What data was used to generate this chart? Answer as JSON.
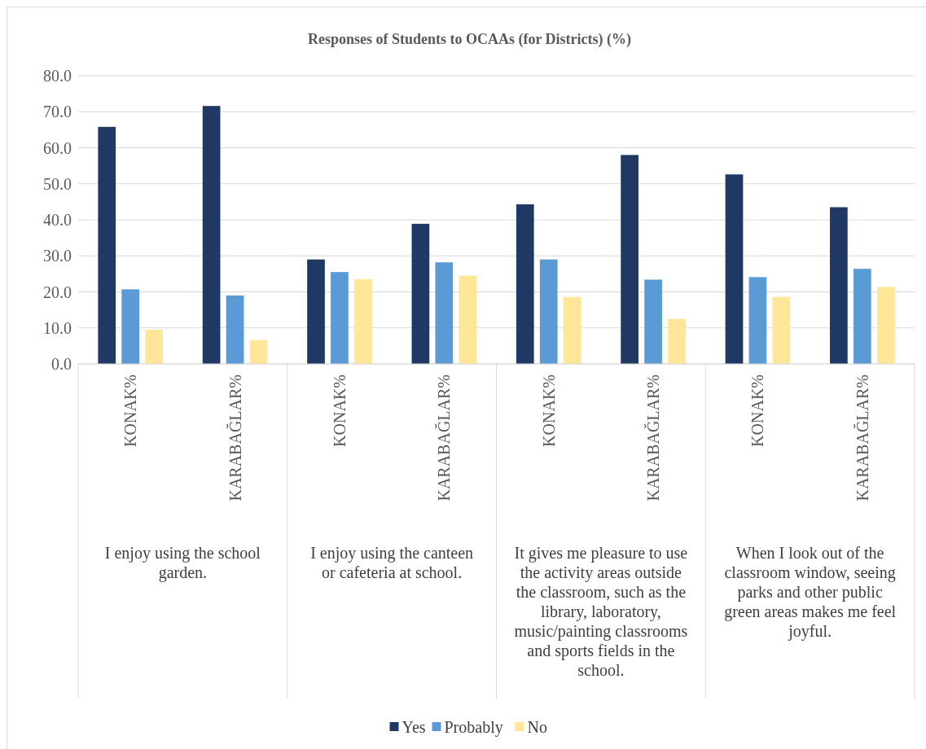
{
  "chart_data": {
    "type": "bar",
    "title": "Responses of Students to OCAAs (for Districts) (%)",
    "categories": [
      "KONAK%",
      "KARABAĞLAR%",
      "KONAK%",
      "KARABAĞLAR%",
      "KONAK%",
      "KARABAĞLAR%",
      "KONAK%",
      "KARABAĞLAR%"
    ],
    "series": [
      {
        "name": "Yes",
        "color": "#203864",
        "values": [
          65.8,
          71.6,
          29.0,
          38.9,
          44.3,
          58.0,
          52.6,
          43.5
        ]
      },
      {
        "name": "Probably",
        "color": "#5b9bd5",
        "values": [
          20.7,
          19.0,
          25.5,
          28.2,
          29.0,
          23.4,
          24.1,
          26.4
        ]
      },
      {
        "name": "No",
        "color": "#ffe699",
        "values": [
          9.5,
          6.6,
          23.5,
          24.5,
          18.6,
          12.5,
          18.6,
          21.4
        ]
      }
    ],
    "annotations": [
      "I enjoy using the school garden.",
      "I enjoy using the canteen or cafeteria at school.",
      "It gives me pleasure to use the activity areas outside the classroom, such as the library, laboratory, music/painting classrooms and sports fields in the school.",
      "When I look out of the classroom window, seeing parks and other public green areas makes me feel joyful."
    ],
    "ylim": [
      0,
      80
    ],
    "yticks": [
      {
        "value": 0,
        "label": "0.0"
      },
      {
        "value": 10,
        "label": "10.0"
      },
      {
        "value": 20,
        "label": "20.0"
      },
      {
        "value": 30,
        "label": "30.0"
      },
      {
        "value": 40,
        "label": "40.0"
      },
      {
        "value": 50,
        "label": "50.0"
      },
      {
        "value": 60,
        "label": "60.0"
      },
      {
        "value": 70,
        "label": "70.0"
      },
      {
        "value": 80,
        "label": "80.0"
      }
    ],
    "grid": "y",
    "legend": "bottom"
  }
}
